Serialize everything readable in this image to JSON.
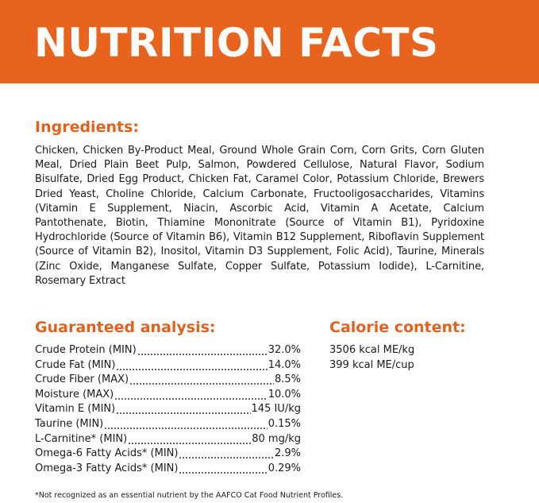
{
  "header": {
    "title": "NUTRITION FACTS"
  },
  "ingredients": {
    "heading": "Ingredients:",
    "text": "Chicken, Chicken By-Product Meal, Ground Whole Grain Corn, Corn Grits, Corn Gluten Meal, Dried Plain Beet Pulp, Salmon, Powdered Cellulose, Natural Flavor, Sodium Bisulfate, Dried Egg Product, Chicken Fat, Caramel Color, Potassium Chloride, Brewers Dried Yeast, Choline Chloride, Calcium Carbonate, Fructooligosaccharides, Vitamins (Vitamin E Supplement, Niacin, Ascorbic Acid, Vitamin A Acetate, Calcium Pantothenate, Biotin, Thiamine Mononitrate (Source of Vitamin B1), Pyridoxine Hydrochloride (Source of Vitamin B6), Vitamin B12 Supplement, Riboflavin Supplement (Source of Vitamin B2), Inositol, Vitamin D3 Supplement, Folic Acid), Taurine, Minerals (Zinc Oxide, Manganese Sulfate, Copper Sulfate, Potassium Iodide), L-Carnitine, Rosemary Extract"
  },
  "analysis": {
    "heading": "Guaranteed analysis:",
    "rows": [
      [
        "Crude Protein (MIN)",
        "32.0%"
      ],
      [
        "Crude Fat (MIN)",
        "14.0%"
      ],
      [
        "Crude Fiber (MAX)",
        "8.5%"
      ],
      [
        "Moisture (MAX)",
        "10.0%"
      ],
      [
        "Vitamin E (MIN)",
        "145 IU/kg"
      ],
      [
        "Taurine (MIN)",
        "0.15%"
      ],
      [
        "L-Carnitine* (MIN)",
        "80 mg/kg"
      ],
      [
        "Omega-6 Fatty Acids* (MIN)",
        "2.9%"
      ],
      [
        "Omega-3 Fatty Acids* (MIN)",
        "0.29%"
      ]
    ]
  },
  "calorie": {
    "heading": "Calorie content:",
    "lines": [
      "3506 kcal ME/kg",
      "399 kcal ME/cup"
    ]
  },
  "footnote": "*Not recognized as an essential nutrient by the AAFCO Cat Food Nutrient Profiles."
}
